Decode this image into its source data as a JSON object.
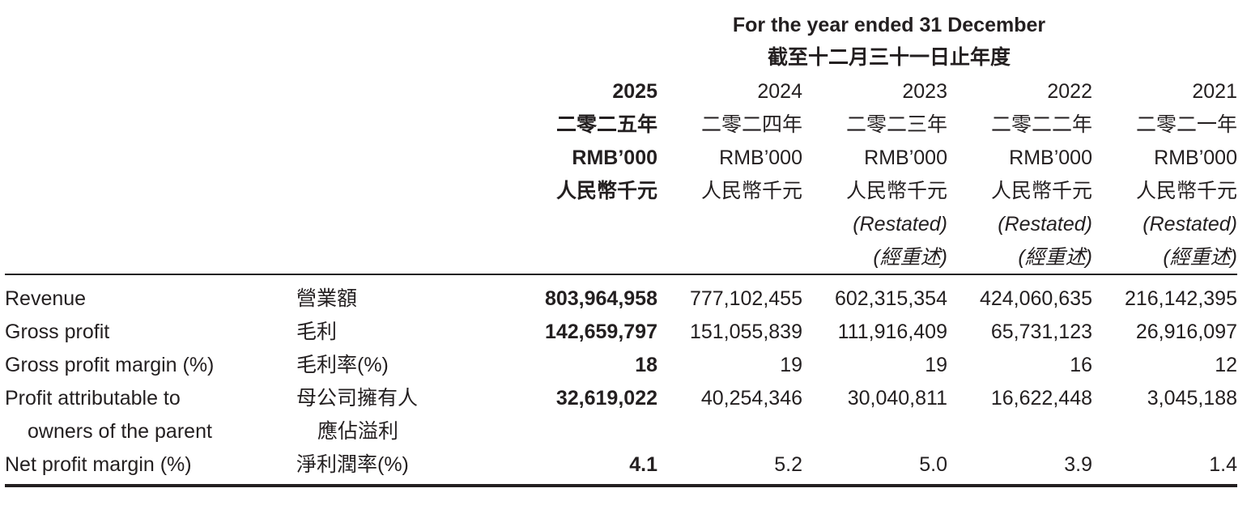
{
  "header": {
    "period_en": "For the year ended 31 December",
    "period_zh": "截至十二月三十一日止年度"
  },
  "columns": [
    {
      "year": "2025",
      "year_zh": "二零二五年",
      "unit_en": "RMB’000",
      "unit_zh": "人民幣千元",
      "restated_en": "",
      "restated_zh": ""
    },
    {
      "year": "2024",
      "year_zh": "二零二四年",
      "unit_en": "RMB’000",
      "unit_zh": "人民幣千元",
      "restated_en": "",
      "restated_zh": ""
    },
    {
      "year": "2023",
      "year_zh": "二零二三年",
      "unit_en": "RMB’000",
      "unit_zh": "人民幣千元",
      "restated_en": "(Restated)",
      "restated_zh": "(經重述)"
    },
    {
      "year": "2022",
      "year_zh": "二零二二年",
      "unit_en": "RMB’000",
      "unit_zh": "人民幣千元",
      "restated_en": "(Restated)",
      "restated_zh": "(經重述)"
    },
    {
      "year": "2021",
      "year_zh": "二零二一年",
      "unit_en": "RMB’000",
      "unit_zh": "人民幣千元",
      "restated_en": "(Restated)",
      "restated_zh": "(經重述)"
    }
  ],
  "rows": [
    {
      "label_en": "Revenue",
      "label_zh": "營業額",
      "values": [
        "803,964,958",
        "777,102,455",
        "602,315,354",
        "424,060,635",
        "216,142,395"
      ]
    },
    {
      "label_en": "Gross profit",
      "label_zh": "毛利",
      "values": [
        "142,659,797",
        "151,055,839",
        "111,916,409",
        "65,731,123",
        "26,916,097"
      ]
    },
    {
      "label_en": "Gross profit margin (%)",
      "label_zh": "毛利率(%)",
      "values": [
        "18",
        "19",
        "19",
        "16",
        "12"
      ]
    },
    {
      "label_en": "Profit attributable to",
      "label_en_2": "owners of the parent",
      "label_zh": "母公司擁有人",
      "label_zh_2": "應佔溢利",
      "values": [
        "32,619,022",
        "40,254,346",
        "30,040,811",
        "16,622,448",
        "3,045,188"
      ]
    },
    {
      "label_en": "Net profit margin (%)",
      "label_zh": "淨利潤率(%)",
      "values": [
        "4.1",
        "5.2",
        "5.0",
        "3.9",
        "1.4"
      ]
    }
  ]
}
